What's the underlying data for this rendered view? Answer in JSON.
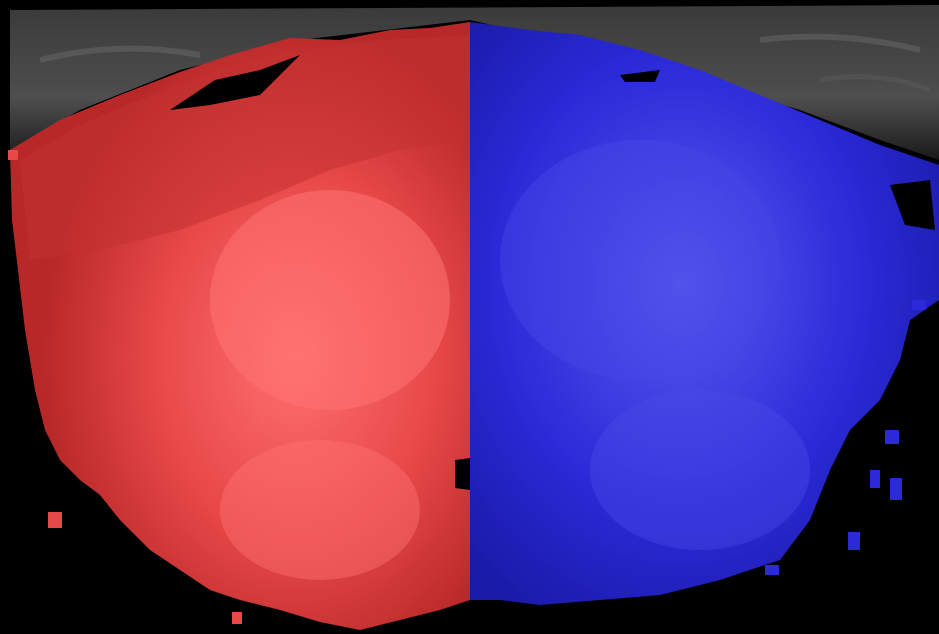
{
  "image": {
    "kind": "segmentation-overlay",
    "background_color": "#000000",
    "scan_tissue_color": "#5a5a5a",
    "regions": [
      {
        "id": "left-region",
        "fill_color": "#e84848",
        "highlight_color": "#ff7070",
        "shadow_color": "#b82828"
      },
      {
        "id": "right-region",
        "fill_color": "#2a2ad8",
        "highlight_color": "#5a5af0",
        "shadow_color": "#1a1aa8"
      }
    ]
  }
}
